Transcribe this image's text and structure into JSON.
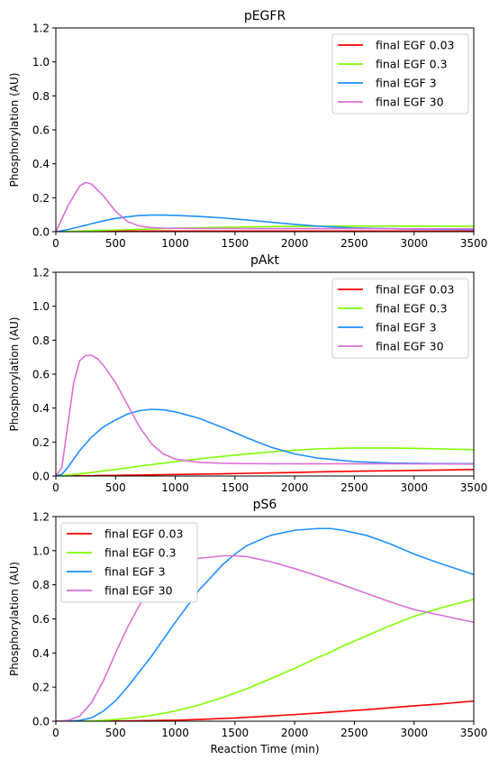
{
  "chart_data": [
    {
      "type": "line",
      "title": "pEGFR",
      "xlabel": "",
      "ylabel": "Phosphorylation (AU)",
      "xlim": [
        0,
        3500
      ],
      "ylim": [
        0,
        1.2
      ],
      "xticks": [
        "0",
        "500",
        "1000",
        "1500",
        "2000",
        "2500",
        "3000",
        "3500"
      ],
      "yticks": [
        "0.0",
        "0.2",
        "0.4",
        "0.6",
        "0.8",
        "1.0",
        "1.2"
      ],
      "legend": "top-right",
      "x": [
        0,
        100,
        200,
        250,
        300,
        400,
        500,
        600,
        700,
        800,
        900,
        1000,
        1200,
        1400,
        1600,
        1800,
        2000,
        2200,
        2500,
        3000,
        3500
      ],
      "series": [
        {
          "name": "final EGF 0.03",
          "color": "#ff0000",
          "values": [
            0,
            0.001,
            0.002,
            0.002,
            0.003,
            0.003,
            0.004,
            0.004,
            0.004,
            0.004,
            0.004,
            0.004,
            0.004,
            0.004,
            0.004,
            0.004,
            0.004,
            0.004,
            0.004,
            0.004,
            0.004
          ]
        },
        {
          "name": "final EGF 0.3",
          "color": "#7fff00",
          "values": [
            0,
            0.002,
            0.004,
            0.005,
            0.006,
            0.008,
            0.01,
            0.012,
            0.014,
            0.016,
            0.018,
            0.02,
            0.023,
            0.026,
            0.028,
            0.03,
            0.031,
            0.032,
            0.033,
            0.033,
            0.032
          ]
        },
        {
          "name": "final EGF 3",
          "color": "#1e90ff",
          "values": [
            0,
            0.012,
            0.03,
            0.038,
            0.047,
            0.064,
            0.078,
            0.088,
            0.095,
            0.098,
            0.098,
            0.096,
            0.09,
            0.081,
            0.069,
            0.056,
            0.043,
            0.032,
            0.022,
            0.015,
            0.013
          ]
        },
        {
          "name": "final EGF 30",
          "color": "#da70d6",
          "values": [
            0,
            0.15,
            0.27,
            0.29,
            0.28,
            0.21,
            0.12,
            0.06,
            0.033,
            0.024,
            0.021,
            0.02,
            0.019,
            0.019,
            0.018,
            0.018,
            0.018,
            0.018,
            0.018,
            0.017,
            0.017
          ]
        }
      ]
    },
    {
      "type": "line",
      "title": "pAkt",
      "xlabel": "",
      "ylabel": "Phosphorylation (AU)",
      "xlim": [
        0,
        3500
      ],
      "ylim": [
        0,
        1.2
      ],
      "xticks": [
        "0",
        "500",
        "1000",
        "1500",
        "2000",
        "2500",
        "3000",
        "3500"
      ],
      "yticks": [
        "0.0",
        "0.2",
        "0.4",
        "0.6",
        "0.8",
        "1.0",
        "1.2"
      ],
      "legend": "top-right",
      "x": [
        0,
        50,
        100,
        150,
        200,
        250,
        300,
        350,
        400,
        500,
        600,
        700,
        800,
        900,
        1000,
        1200,
        1400,
        1600,
        1800,
        2000,
        2200,
        2500,
        2800,
        3000,
        3200,
        3500
      ],
      "series": [
        {
          "name": "final EGF 0.03",
          "color": "#ff0000",
          "values": [
            0,
            0,
            0.001,
            0.001,
            0.002,
            0.002,
            0.002,
            0.003,
            0.003,
            0.004,
            0.005,
            0.006,
            0.007,
            0.008,
            0.009,
            0.011,
            0.013,
            0.016,
            0.018,
            0.021,
            0.024,
            0.028,
            0.031,
            0.033,
            0.035,
            0.038
          ]
        },
        {
          "name": "final EGF 0.3",
          "color": "#7fff00",
          "values": [
            0,
            0.002,
            0.005,
            0.009,
            0.013,
            0.017,
            0.021,
            0.025,
            0.03,
            0.039,
            0.048,
            0.058,
            0.067,
            0.076,
            0.085,
            0.101,
            0.116,
            0.13,
            0.142,
            0.152,
            0.16,
            0.165,
            0.165,
            0.163,
            0.16,
            0.155
          ]
        },
        {
          "name": "final EGF 3",
          "color": "#1e90ff",
          "values": [
            0,
            0.01,
            0.05,
            0.1,
            0.15,
            0.19,
            0.23,
            0.26,
            0.29,
            0.33,
            0.365,
            0.385,
            0.393,
            0.39,
            0.378,
            0.34,
            0.285,
            0.225,
            0.17,
            0.13,
            0.105,
            0.085,
            0.077,
            0.075,
            0.073,
            0.072
          ]
        },
        {
          "name": "final EGF 30",
          "color": "#da70d6",
          "values": [
            0,
            0.05,
            0.3,
            0.55,
            0.68,
            0.71,
            0.71,
            0.69,
            0.65,
            0.55,
            0.42,
            0.29,
            0.19,
            0.13,
            0.1,
            0.08,
            0.075,
            0.073,
            0.072,
            0.072,
            0.072,
            0.072,
            0.072,
            0.071,
            0.071,
            0.07
          ]
        }
      ]
    },
    {
      "type": "line",
      "title": "pS6",
      "xlabel": "Reaction Time (min)",
      "ylabel": "Phosphorylation (AU)",
      "xlim": [
        0,
        3500
      ],
      "ylim": [
        0,
        1.2
      ],
      "xticks": [
        "0",
        "500",
        "1000",
        "1500",
        "2000",
        "2500",
        "3000",
        "3500"
      ],
      "yticks": [
        "0.0",
        "0.2",
        "0.4",
        "0.6",
        "0.8",
        "1.0",
        "1.2"
      ],
      "legend": "top-left",
      "x": [
        0,
        100,
        200,
        300,
        400,
        500,
        600,
        700,
        800,
        900,
        1000,
        1200,
        1400,
        1500,
        1600,
        1800,
        2000,
        2200,
        2300,
        2400,
        2600,
        2800,
        3000,
        3200,
        3500
      ],
      "series": [
        {
          "name": "final EGF 0.03",
          "color": "#ff0000",
          "values": [
            0,
            0,
            0,
            0,
            0.001,
            0.001,
            0.002,
            0.003,
            0.004,
            0.005,
            0.006,
            0.01,
            0.016,
            0.019,
            0.023,
            0.031,
            0.039,
            0.048,
            0.053,
            0.058,
            0.068,
            0.079,
            0.09,
            0.1,
            0.118
          ]
        },
        {
          "name": "final EGF 0.3",
          "color": "#7fff00",
          "values": [
            0,
            0,
            0,
            0.002,
            0.005,
            0.01,
            0.016,
            0.024,
            0.034,
            0.046,
            0.06,
            0.095,
            0.14,
            0.165,
            0.19,
            0.25,
            0.31,
            0.375,
            0.405,
            0.44,
            0.5,
            0.56,
            0.615,
            0.66,
            0.715
          ]
        },
        {
          "name": "final EGF 3",
          "color": "#1e90ff",
          "values": [
            0,
            0,
            0.005,
            0.02,
            0.06,
            0.12,
            0.2,
            0.29,
            0.38,
            0.48,
            0.58,
            0.77,
            0.92,
            0.98,
            1.03,
            1.09,
            1.12,
            1.13,
            1.13,
            1.12,
            1.09,
            1.04,
            0.98,
            0.93,
            0.86
          ]
        },
        {
          "name": "final EGF 30",
          "color": "#da70d6",
          "values": [
            0,
            0.005,
            0.03,
            0.11,
            0.24,
            0.4,
            0.55,
            0.68,
            0.78,
            0.86,
            0.91,
            0.955,
            0.97,
            0.97,
            0.965,
            0.935,
            0.895,
            0.85,
            0.825,
            0.8,
            0.75,
            0.7,
            0.655,
            0.625,
            0.58
          ]
        }
      ]
    }
  ]
}
